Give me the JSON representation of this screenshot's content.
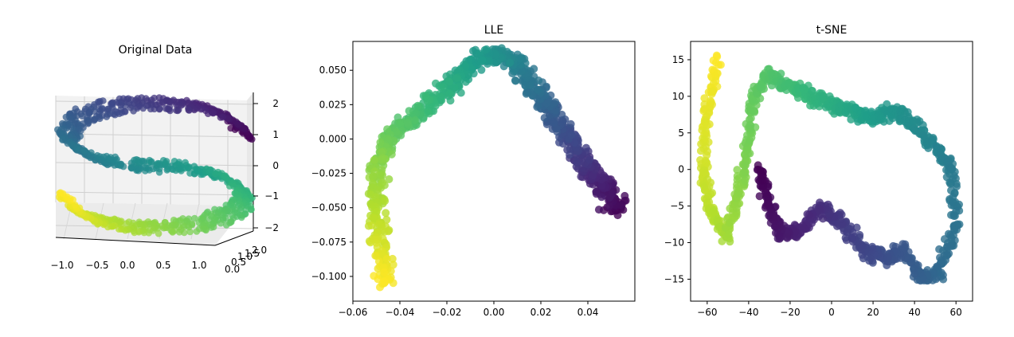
{
  "chart_data": [
    {
      "type": "scatter",
      "projection": "3d",
      "title": "Original Data",
      "xlim": [
        -1.0,
        1.0
      ],
      "ylim": [
        0,
        2
      ],
      "zlim": [
        -2,
        2
      ],
      "xticks": [
        "−1.0",
        "−0.5",
        "0.0",
        "0.5",
        "1.0"
      ],
      "yticks": [
        "0.0",
        "0.5",
        "1.0",
        "1.5",
        "2.0"
      ],
      "zticks": [
        "−2",
        "−1",
        "0",
        "1",
        "2"
      ],
      "grid": true,
      "colormap": "viridis",
      "pane_color": "#f2f2f2"
    },
    {
      "type": "scatter",
      "title": "LLE",
      "xlim": [
        -0.06,
        0.06
      ],
      "ylim": [
        -0.118,
        0.071
      ],
      "xticks": [
        -0.06,
        -0.04,
        -0.02,
        0.0,
        0.02,
        0.04
      ],
      "xtick_labels": [
        "−0.06",
        "−0.04",
        "−0.02",
        "0.00",
        "0.02",
        "0.04"
      ],
      "yticks": [
        0.05,
        0.025,
        0.0,
        -0.025,
        -0.05,
        -0.075,
        -0.1
      ],
      "ytick_labels": [
        "0.050",
        "0.025",
        "0.000",
        "−0.025",
        "−0.050",
        "−0.075",
        "−0.100"
      ],
      "colormap": "viridis",
      "points": [
        [
          0.053,
          -0.052
        ],
        [
          0.048,
          -0.038
        ],
        [
          0.042,
          -0.025
        ],
        [
          0.036,
          -0.01
        ],
        [
          0.03,
          0.005
        ],
        [
          0.024,
          0.02
        ],
        [
          0.018,
          0.035
        ],
        [
          0.012,
          0.05
        ],
        [
          0.005,
          0.06
        ],
        [
          -0.005,
          0.06
        ],
        [
          -0.015,
          0.045
        ],
        [
          -0.025,
          0.03
        ],
        [
          -0.035,
          0.015
        ],
        [
          -0.045,
          0.0
        ],
        [
          -0.05,
          -0.02
        ],
        [
          -0.05,
          -0.05
        ],
        [
          -0.048,
          -0.08
        ],
        [
          -0.047,
          -0.106
        ]
      ]
    },
    {
      "type": "scatter",
      "title": "t-SNE",
      "xlim": [
        -68,
        68
      ],
      "ylim": [
        -18,
        17.5
      ],
      "xticks": [
        -60,
        -40,
        -20,
        0,
        20,
        40,
        60
      ],
      "xtick_labels": [
        "−60",
        "−40",
        "−20",
        "0",
        "20",
        "40",
        "60"
      ],
      "yticks": [
        15,
        10,
        5,
        0,
        -5,
        -10,
        -15
      ],
      "ytick_labels": [
        "15",
        "10",
        "5",
        "0",
        "−5",
        "−10",
        "−15"
      ],
      "colormap": "viridis",
      "points": [
        [
          -55,
          15
        ],
        [
          -60,
          8
        ],
        [
          -62,
          0
        ],
        [
          -58,
          -6
        ],
        [
          -50,
          -9
        ],
        [
          -45,
          -3
        ],
        [
          -40,
          3
        ],
        [
          -38,
          10
        ],
        [
          -30,
          13
        ],
        [
          -20,
          11
        ],
        [
          -10,
          10
        ],
        [
          0,
          9
        ],
        [
          10,
          8
        ],
        [
          20,
          7
        ],
        [
          30,
          8
        ],
        [
          40,
          6
        ],
        [
          50,
          3
        ],
        [
          58,
          0
        ],
        [
          60,
          -8
        ],
        [
          52,
          -14
        ],
        [
          44,
          -15
        ],
        [
          35,
          -11
        ],
        [
          25,
          -12
        ],
        [
          15,
          -11
        ],
        [
          5,
          -7
        ],
        [
          -5,
          -5
        ],
        [
          -15,
          -8
        ],
        [
          -25,
          -9
        ],
        [
          -30,
          -5
        ],
        [
          -35,
          0
        ]
      ]
    }
  ]
}
